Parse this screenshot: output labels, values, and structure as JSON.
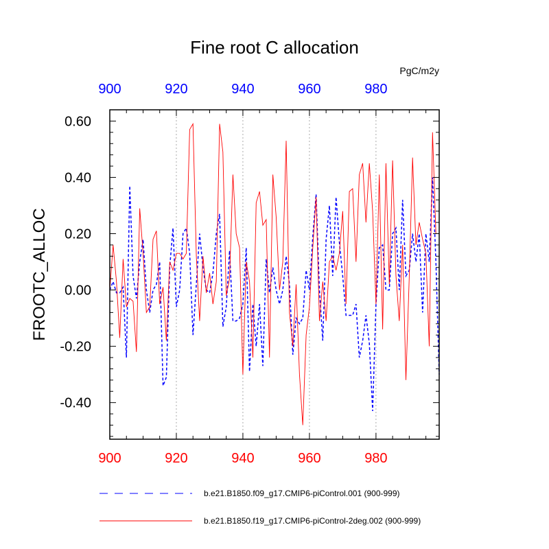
{
  "colors": {
    "series_a": "#0000ff",
    "series_b": "#ff0000",
    "top_axis_labels": "#0000ff",
    "bottom_axis_labels": "#ff0000",
    "text": "#000000",
    "grid": "#aaaaaa"
  },
  "chart_data": {
    "type": "line",
    "title": "Fine root C allocation",
    "ylabel": "FROOTC_ALLOC",
    "units": "PgC/m2y",
    "xlim": [
      900,
      999
    ],
    "ylim": [
      -0.53,
      0.64
    ],
    "x_ticks": [
      "900",
      "920",
      "940",
      "960",
      "980"
    ],
    "y_ticks": [
      "0.60",
      "0.40",
      "0.20",
      "0.00",
      "-0.20",
      "-0.40"
    ],
    "y_tick_values": [
      0.6,
      0.4,
      0.2,
      0.0,
      -0.2,
      -0.4
    ],
    "grid": "vertical dotted at 920, 940, 960, 980",
    "legend_placement": "bottom",
    "x": [
      900,
      901,
      902,
      903,
      904,
      905,
      906,
      907,
      908,
      909,
      910,
      911,
      912,
      913,
      914,
      915,
      916,
      917,
      918,
      919,
      920,
      921,
      922,
      923,
      924,
      925,
      926,
      927,
      928,
      929,
      930,
      931,
      932,
      933,
      934,
      935,
      936,
      937,
      938,
      939,
      940,
      941,
      942,
      943,
      944,
      945,
      946,
      947,
      948,
      949,
      950,
      951,
      952,
      953,
      954,
      955,
      956,
      957,
      958,
      959,
      960,
      961,
      962,
      963,
      964,
      965,
      966,
      967,
      968,
      969,
      970,
      971,
      972,
      973,
      974,
      975,
      976,
      977,
      978,
      979,
      980,
      981,
      982,
      983,
      984,
      985,
      986,
      987,
      988,
      989,
      990,
      991,
      992,
      993,
      994,
      995,
      996,
      997,
      998,
      999
    ],
    "series": [
      {
        "name": "b.e21.B1850.f09_g17.CMIP6-piControl.001 (900-999)",
        "style": "dashed",
        "values": [
          0.0,
          0.03,
          -0.01,
          -0.01,
          0.01,
          -0.24,
          0.37,
          0.05,
          -0.03,
          0.1,
          0.18,
          0.0,
          -0.08,
          0.0,
          0.02,
          0.1,
          -0.34,
          -0.31,
          0.08,
          0.22,
          -0.06,
          0.0,
          0.2,
          0.22,
          0.13,
          -0.16,
          0.02,
          0.2,
          0.08,
          0.0,
          -0.01,
          0.06,
          0.2,
          0.27,
          -0.13,
          -0.06,
          0.14,
          -0.11,
          -0.11,
          -0.1,
          -0.05,
          0.15,
          -0.29,
          -0.05,
          -0.2,
          -0.05,
          -0.27,
          0.11,
          -0.01,
          0.08,
          0.0,
          -0.05,
          0.0,
          0.12,
          0.02,
          -0.23,
          -0.1,
          -0.12,
          -0.1,
          0.07,
          0.0,
          0.19,
          0.34,
          0.0,
          -0.18,
          0.18,
          0.3,
          0.05,
          0.33,
          0.17,
          0.05,
          -0.09,
          -0.09,
          -0.09,
          -0.05,
          -0.24,
          -0.18,
          -0.09,
          -0.19,
          -0.43,
          -0.05,
          0.15,
          0.16,
          0.0,
          0.0,
          0.2,
          0.22,
          0.0,
          0.32,
          0.05,
          0.07,
          0.2,
          0.1,
          0.2,
          -0.08,
          0.2,
          0.1,
          0.4,
          0.1,
          -0.3
        ]
      },
      {
        "name": "b.e21.B1850.f19_g17.CMIP6-piControl-2deg.002 (900-999)",
        "style": "solid",
        "values": [
          0.0,
          0.16,
          0.03,
          -0.17,
          0.11,
          -0.06,
          -0.03,
          -0.04,
          -0.22,
          0.29,
          0.13,
          -0.08,
          -0.06,
          0.18,
          0.21,
          -0.05,
          0.01,
          -0.18,
          0.1,
          0.07,
          0.13,
          0.13,
          0.11,
          0.13,
          0.57,
          0.59,
          0.12,
          -0.11,
          0.12,
          -0.01,
          0.06,
          -0.05,
          0.03,
          0.59,
          0.49,
          -0.02,
          0.04,
          0.41,
          0.2,
          0.15,
          -0.3,
          0.1,
          0.03,
          -0.24,
          0.31,
          0.35,
          0.23,
          0.25,
          -0.24,
          0.41,
          0.26,
          0.0,
          0.1,
          0.53,
          -0.08,
          -0.2,
          0.02,
          -0.3,
          -0.48,
          -0.16,
          -0.06,
          0.15,
          0.33,
          -0.11,
          0.03,
          -0.11,
          0.1,
          0.12,
          0.07,
          0.13,
          0.28,
          -0.05,
          0.35,
          0.36,
          0.1,
          0.41,
          0.45,
          0.24,
          0.45,
          0.28,
          -0.05,
          0.41,
          -0.14,
          0.45,
          0.02,
          0.46,
          0.05,
          -0.11,
          0.16,
          -0.32,
          0.05,
          0.47,
          0.16,
          0.24,
          0.18,
          0.13,
          -0.2,
          0.56,
          0.2,
          0.2
        ]
      }
    ]
  }
}
